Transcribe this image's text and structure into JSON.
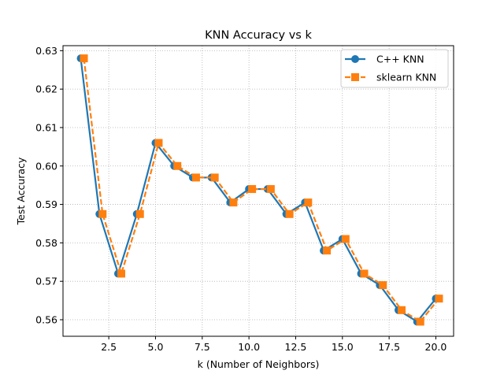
{
  "chart_data": {
    "type": "line",
    "title": "KNN Accuracy vs k",
    "xlabel": "k (Number of Neighbors)",
    "ylabel": "Test Accuracy",
    "xlim": [
      0.05,
      20.95
    ],
    "ylim": [
      0.5557,
      0.6313
    ],
    "xticks": [
      2.5,
      5.0,
      7.5,
      10.0,
      12.5,
      15.0,
      17.5,
      20.0
    ],
    "xtick_labels": [
      "2.5",
      "5.0",
      "7.5",
      "10.0",
      "12.5",
      "15.0",
      "17.5",
      "20.0"
    ],
    "yticks": [
      0.56,
      0.57,
      0.58,
      0.59,
      0.6,
      0.61,
      0.62,
      0.63
    ],
    "ytick_labels": [
      "0.56",
      "0.57",
      "0.58",
      "0.59",
      "0.60",
      "0.61",
      "0.62",
      "0.63"
    ],
    "grid": true,
    "legend_position": "top-right",
    "x": [
      1,
      2,
      3,
      4,
      5,
      6,
      7,
      8,
      9,
      10,
      11,
      12,
      13,
      14,
      15,
      16,
      17,
      18,
      19,
      20
    ],
    "series": [
      {
        "name": "C++ KNN",
        "color": "#1f77b4",
        "marker": "circle",
        "linestyle": "solid",
        "values": [
          0.628,
          0.5875,
          0.572,
          0.5875,
          0.606,
          0.6,
          0.597,
          0.597,
          0.5905,
          0.594,
          0.594,
          0.5875,
          0.5905,
          0.578,
          0.581,
          0.572,
          0.569,
          0.5625,
          0.5595,
          0.5655
        ]
      },
      {
        "name": "sklearn KNN",
        "color": "#ff7f0e",
        "marker": "square",
        "linestyle": "dashed",
        "values": [
          0.628,
          0.5875,
          0.572,
          0.5875,
          0.606,
          0.6,
          0.597,
          0.597,
          0.5905,
          0.594,
          0.594,
          0.5875,
          0.5905,
          0.578,
          0.581,
          0.572,
          0.569,
          0.5625,
          0.5595,
          0.5655
        ]
      }
    ]
  }
}
